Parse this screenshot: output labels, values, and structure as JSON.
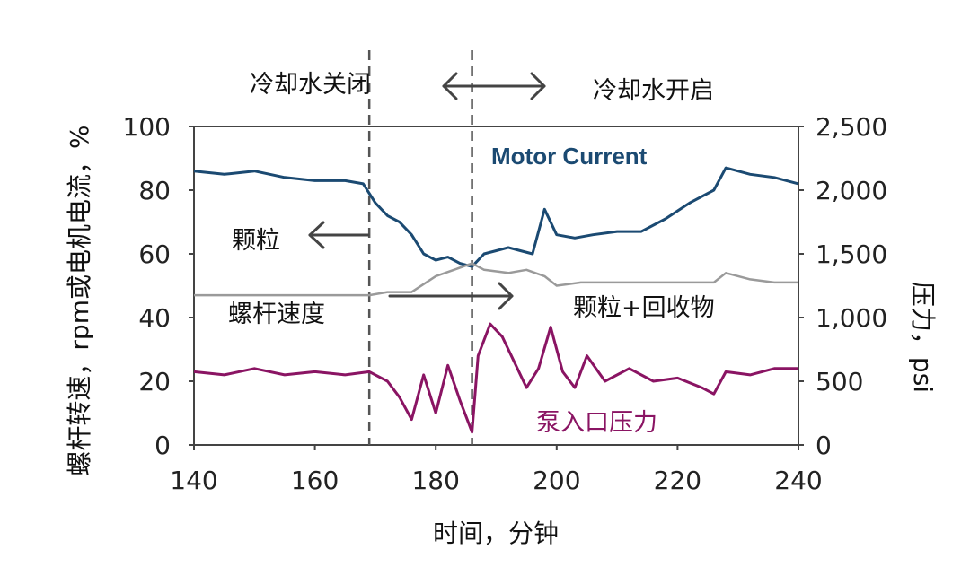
{
  "chart_data": {
    "type": "line",
    "xlabel": "时间，分钟",
    "ylabel_left": "螺杆转速，rpm或电机电流，%",
    "ylabel_right": "压力，psi",
    "xlim": [
      140,
      240
    ],
    "ylim_left": [
      0,
      100
    ],
    "ylim_right": [
      0,
      2500
    ],
    "x_ticks": [
      140,
      160,
      180,
      200,
      220,
      240
    ],
    "y_left_ticks": [
      0,
      20,
      40,
      60,
      80,
      100
    ],
    "y_right_ticks": [
      "0",
      "500",
      "1,000",
      "1,500",
      "2,000",
      "2,500"
    ],
    "grid": false,
    "vlines": [
      169,
      186
    ],
    "annotations": {
      "cooling_off": "冷却水关闭",
      "cooling_on": "冷却水开启",
      "pellets": "颗粒",
      "screw_speed": "螺杆速度",
      "pellets_recycle": "颗粒+回收物",
      "motor_current": "Motor Current",
      "pump_inlet_pressure": "泵入口压力"
    },
    "series": [
      {
        "name": "Motor Current",
        "color": "#1b4a72",
        "x": [
          140,
          145,
          150,
          155,
          160,
          165,
          168,
          170,
          172,
          174,
          176,
          178,
          180,
          182,
          184,
          186,
          188,
          190,
          192,
          194,
          196,
          198,
          200,
          203,
          206,
          210,
          214,
          218,
          222,
          226,
          228,
          232,
          236,
          240
        ],
        "y": [
          86,
          85,
          86,
          84,
          83,
          83,
          82,
          76,
          72,
          70,
          66,
          60,
          58,
          59,
          57,
          56,
          60,
          61,
          62,
          61,
          60,
          74,
          66,
          65,
          66,
          67,
          67,
          71,
          76,
          80,
          87,
          85,
          84,
          82
        ]
      },
      {
        "name": "螺杆速度",
        "color": "#9a9a9a",
        "x": [
          140,
          150,
          160,
          169,
          172,
          176,
          180,
          183,
          186,
          188,
          192,
          195,
          198,
          200,
          204,
          210,
          220,
          226,
          228,
          232,
          236,
          240
        ],
        "y": [
          47,
          47,
          47,
          47,
          48,
          48,
          53,
          55,
          57,
          55,
          54,
          55,
          53,
          50,
          51,
          51,
          51,
          51,
          54,
          52,
          51,
          51
        ]
      },
      {
        "name": "泵入口压力",
        "color": "#8a1463",
        "x": [
          140,
          145,
          150,
          155,
          160,
          165,
          169,
          172,
          174,
          176,
          178,
          180,
          182,
          184,
          186,
          187,
          189,
          191,
          193,
          195,
          197,
          199,
          201,
          203,
          205,
          208,
          212,
          216,
          220,
          224,
          226,
          228,
          232,
          236,
          240
        ],
        "y": [
          23,
          22,
          24,
          22,
          23,
          22,
          23,
          20,
          15,
          8,
          22,
          10,
          25,
          14,
          4,
          28,
          38,
          34,
          26,
          18,
          24,
          37,
          23,
          18,
          28,
          20,
          24,
          20,
          21,
          18,
          16,
          23,
          22,
          24,
          24
        ]
      }
    ]
  }
}
